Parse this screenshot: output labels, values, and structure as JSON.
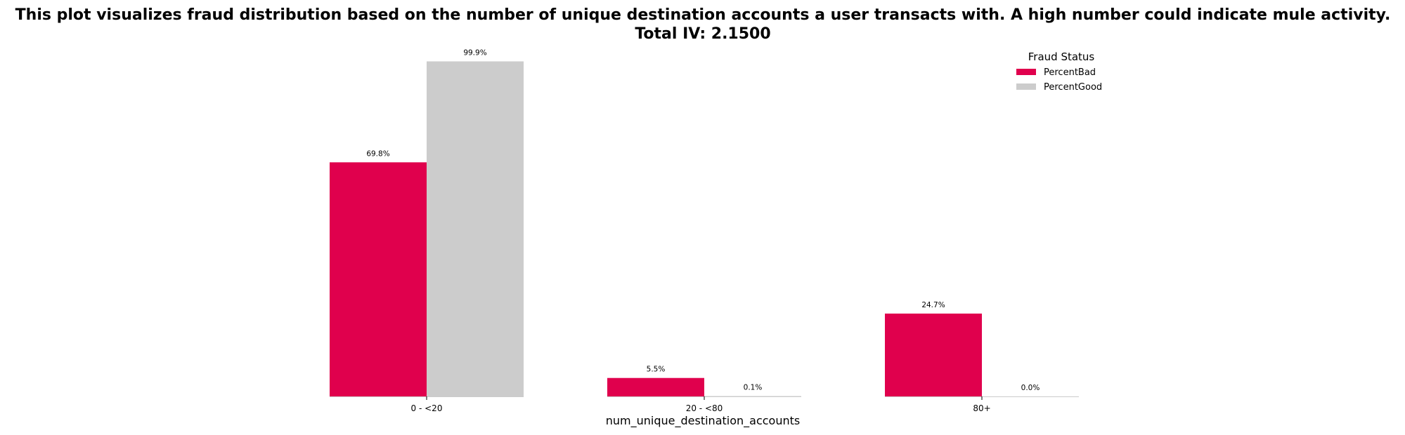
{
  "chart_data": {
    "type": "bar",
    "title": "This plot visualizes fraud distribution based on the number of unique destination accounts a user transacts with. A high number could indicate mule activity.",
    "subtitle": "Total IV: 2.1500",
    "xlabel": "num_unique_destination_accounts",
    "ylabel": "",
    "categories": [
      "0 - <20",
      "20 - <80",
      "80+"
    ],
    "series": [
      {
        "name": "PercentBad",
        "values": [
          69.8,
          5.5,
          24.7
        ],
        "labels": [
          "69.8%",
          "5.5%",
          "24.7%"
        ],
        "color": "#e0004d"
      },
      {
        "name": "PercentGood",
        "values": [
          99.9,
          0.1,
          0.0
        ],
        "labels": [
          "99.9%",
          "0.1%",
          "0.0%"
        ],
        "color": "#cccccc"
      }
    ],
    "ylim": [
      0,
      100
    ],
    "grid": false,
    "legend": {
      "title": "Fraud Status",
      "position": "top-right"
    }
  }
}
